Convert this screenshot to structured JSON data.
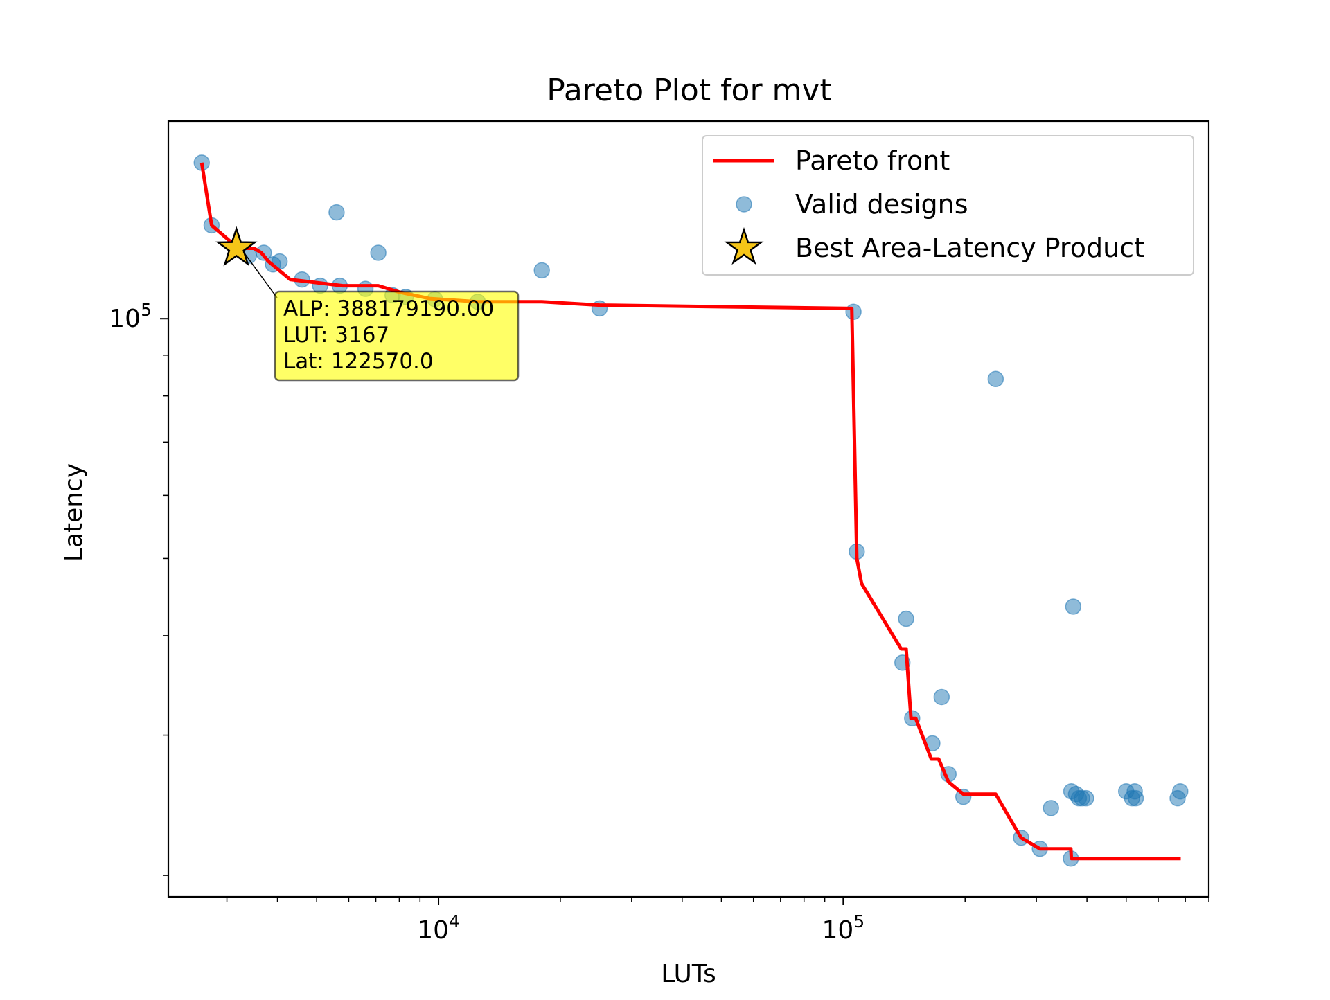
{
  "chart_data": {
    "type": "scatter",
    "title": "Pareto Plot for mvt",
    "xlabel": "LUTs",
    "ylabel": "Latency",
    "xscale": "log",
    "yscale": "log",
    "xlim": [
      2150,
      800000
    ],
    "ylim": [
      18800,
      177000
    ],
    "x_ticks": [
      {
        "value": 10000,
        "base": "10",
        "exp": "4"
      },
      {
        "value": 100000,
        "base": "10",
        "exp": "5"
      }
    ],
    "y_ticks": [
      {
        "value": 100000,
        "base": "10",
        "exp": "5"
      }
    ],
    "legend": {
      "position": "upper right",
      "entries": [
        "Pareto front",
        "Valid designs",
        "Best Area-Latency Product"
      ]
    },
    "series": [
      {
        "name": "Valid designs",
        "kind": "scatter",
        "color": "#1f77b4",
        "x": [
          2600,
          2750,
          3700,
          4050,
          5600,
          7100,
          18000,
          25000,
          3400,
          3900,
          4600,
          5100,
          5700,
          6600,
          7700,
          8300,
          9800,
          12500,
          106000,
          108000,
          238000,
          143000,
          140000,
          148000,
          175000,
          166000,
          182000,
          198000,
          326000,
          275000,
          306000,
          365000,
          366000,
          382000,
          370000,
          376000,
          398000,
          389000,
          500000,
          517000,
          528000,
          525000,
          670000,
          680000
        ],
        "y": [
          157000,
          131000,
          121000,
          118000,
          136000,
          121000,
          115000,
          103000,
          120000,
          117000,
          112000,
          110000,
          110000,
          109000,
          107000,
          106500,
          105800,
          105000,
          102000,
          51000,
          84000,
          42000,
          37000,
          31500,
          33500,
          29300,
          26800,
          25100,
          24300,
          22300,
          21600,
          21000,
          25500,
          25000,
          43500,
          25300,
          25000,
          25000,
          25500,
          25000,
          25000,
          25500,
          25000,
          25500
        ]
      },
      {
        "name": "Pareto front",
        "kind": "line",
        "color": "#ff0000",
        "x": [
          2600,
          2750,
          3200,
          3500,
          3650,
          3800,
          4300,
          5800,
          7100,
          8000,
          9500,
          12500,
          18000,
          25000,
          105000,
          108000,
          111000,
          139000,
          143000,
          147000,
          151000,
          165000,
          172000,
          182000,
          198000,
          238000,
          275000,
          306000,
          365000,
          366000,
          682000
        ],
        "y": [
          157000,
          131000,
          122570,
          122570,
          121000,
          118000,
          112000,
          110000,
          110000,
          108000,
          106000,
          105000,
          105000,
          104000,
          103000,
          50000,
          46500,
          38500,
          38500,
          31500,
          31500,
          28000,
          28000,
          26200,
          25300,
          25300,
          22300,
          21600,
          21600,
          21000,
          21000
        ]
      }
    ],
    "best": {
      "name": "Best Area-Latency Product",
      "x": 3167,
      "y": 122570,
      "color": "#f5c518",
      "annotation": [
        "ALP: 388179190.00",
        "LUT: 3167",
        "Lat: 122570.0"
      ],
      "annotation_bg": "#ffff00"
    }
  }
}
